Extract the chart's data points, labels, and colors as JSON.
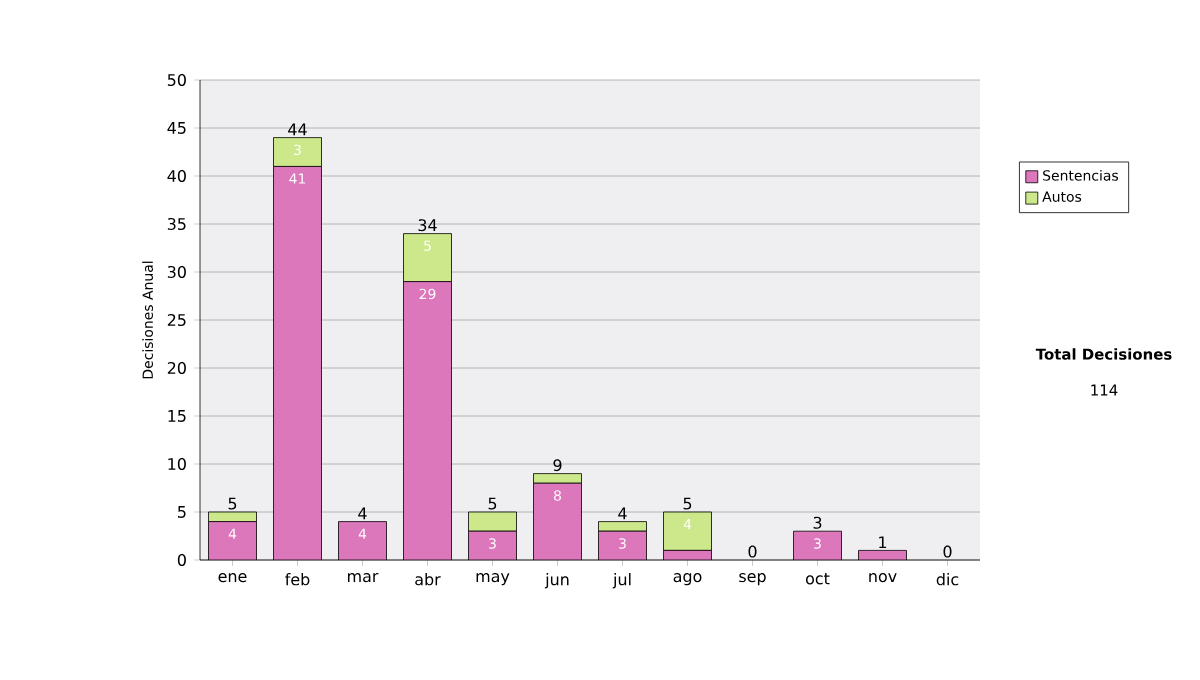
{
  "chart_data": {
    "type": "bar",
    "stacked": true,
    "ylabel": "Decisiones Anual",
    "categories": [
      "ene",
      "feb",
      "mar",
      "abr",
      "may",
      "jun",
      "jul",
      "ago",
      "sep",
      "oct",
      "nov",
      "dic"
    ],
    "series": [
      {
        "name": "Sentencias",
        "color": "#dd77bb",
        "values": [
          4,
          41,
          4,
          29,
          3,
          8,
          3,
          1,
          0,
          3,
          1,
          0
        ],
        "value_labels": [
          "4",
          "41",
          "4",
          "29",
          "3",
          "8",
          "3",
          null,
          null,
          "3",
          null,
          null
        ]
      },
      {
        "name": "Autos",
        "color": "#cce88a",
        "values": [
          1,
          3,
          0,
          5,
          2,
          1,
          1,
          4,
          0,
          0,
          0,
          0
        ],
        "value_labels": [
          null,
          "3",
          null,
          "5",
          null,
          null,
          null,
          "4",
          null,
          null,
          null,
          null
        ]
      }
    ],
    "totals": [
      "5",
      "44",
      "4",
      "34",
      "5",
      "9",
      "4",
      "5",
      "0",
      "3",
      "1",
      "0"
    ],
    "ylim": [
      0,
      50
    ],
    "yticks": [
      0,
      5,
      10,
      15,
      20,
      25,
      30,
      35,
      40,
      45,
      50
    ],
    "grid": "y",
    "legend": "right",
    "annotations": [
      "Total Decisiones",
      "114"
    ]
  }
}
